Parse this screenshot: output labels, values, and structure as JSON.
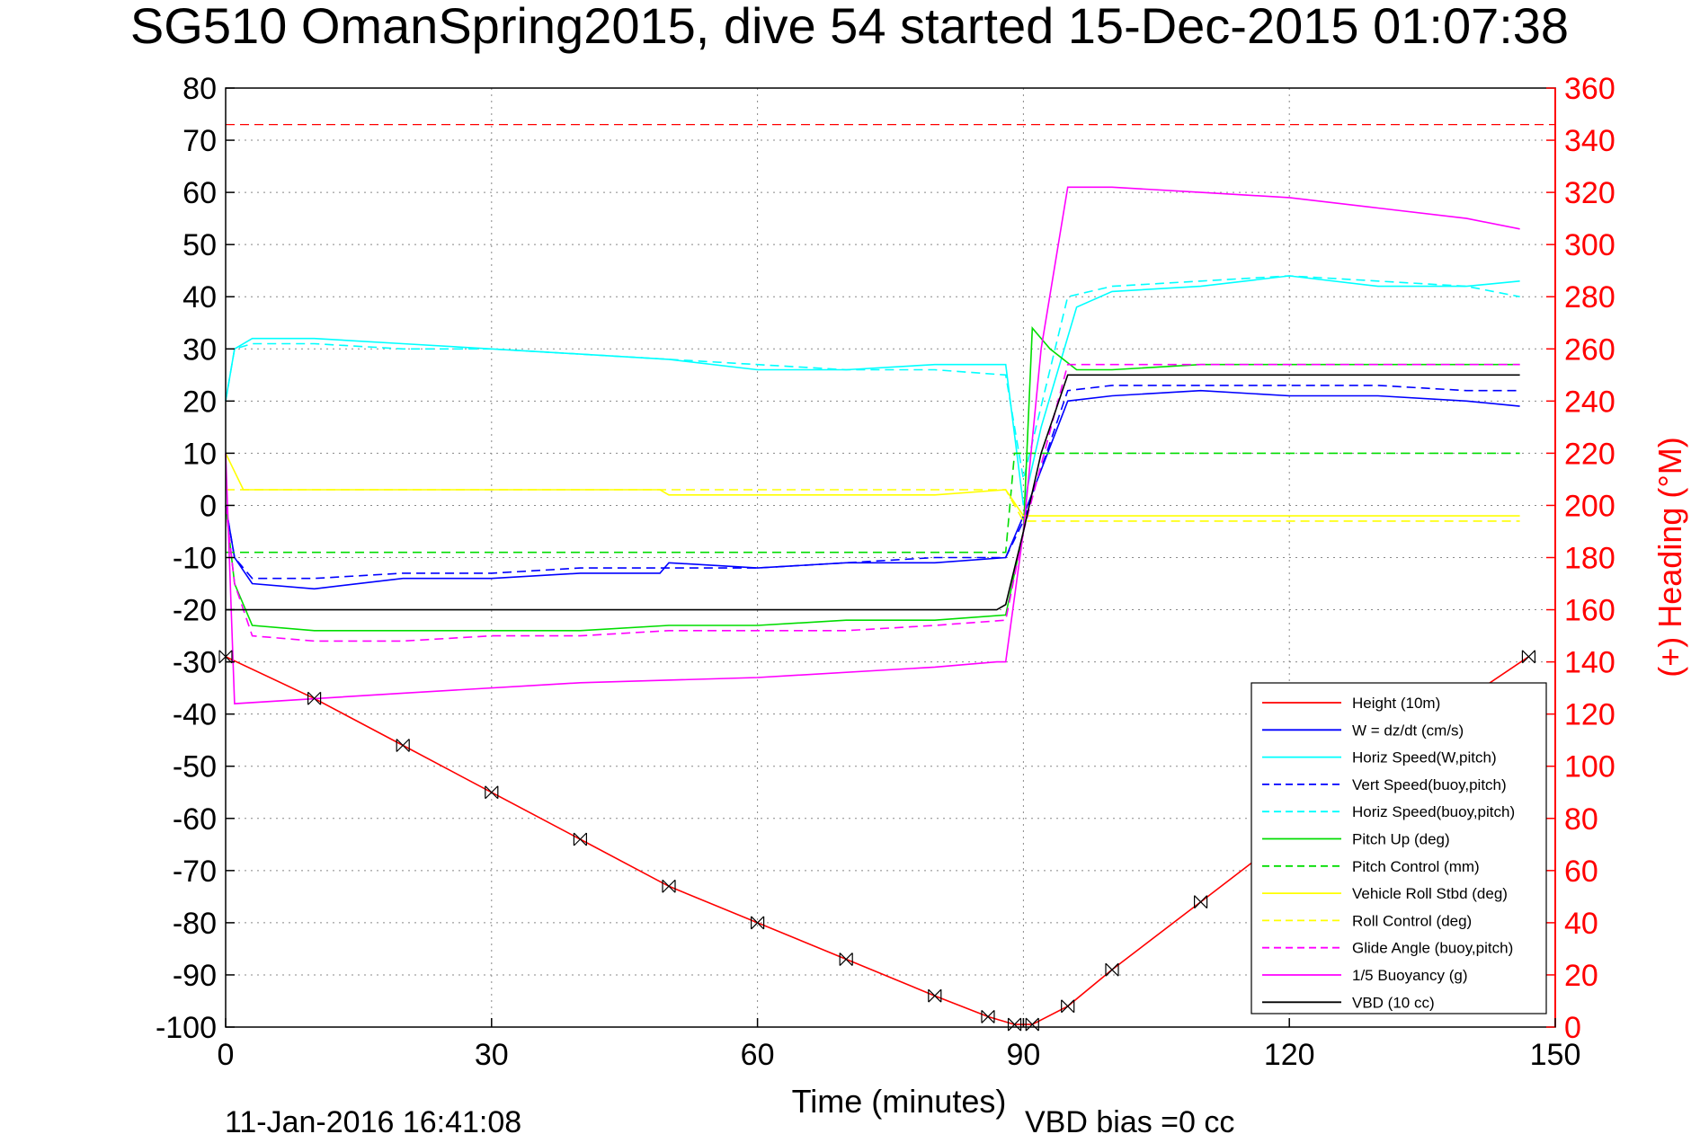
{
  "chart_data": {
    "type": "line",
    "title": "SG510 OmanSpring2015, dive 54 started 15-Dec-2015 01:07:38",
    "xlabel": "Time (minutes)",
    "ylabel_right": "(+) Heading (°M)",
    "xlim": [
      0,
      150
    ],
    "ylim": [
      -100,
      80
    ],
    "ylim_right": [
      0,
      360
    ],
    "xticks": [
      "0",
      "30",
      "60",
      "90",
      "120",
      "150"
    ],
    "yticks": [
      "80",
      "70",
      "60",
      "50",
      "40",
      "30",
      "20",
      "10",
      "0",
      "-10",
      "-20",
      "-30",
      "-40",
      "-50",
      "-60",
      "-70",
      "-80",
      "-90",
      "-100"
    ],
    "yticks_right": [
      "360",
      "340",
      "320",
      "300",
      "280",
      "260",
      "240",
      "220",
      "200",
      "180",
      "160",
      "140",
      "120",
      "100",
      "80",
      "60",
      "40",
      "20",
      "0"
    ],
    "grid": true,
    "legend_position": "bottom-right",
    "footer_date": "11-Jan-2016 16:41:08",
    "footer_note": "VBD bias =0 cc",
    "heading_ref_line": 73,
    "series": [
      {
        "name": "Height (10m)",
        "color": "#ff0000",
        "style": "solid",
        "x": [
          0,
          10,
          20,
          30,
          40,
          50,
          60,
          70,
          80,
          86,
          89,
          91,
          95,
          100,
          110,
          120,
          130,
          140,
          147
        ],
        "y": [
          -29,
          -37,
          -46,
          -55,
          -64,
          -73,
          -80,
          -87,
          -94,
          -98,
          -99.5,
          -99.5,
          -96,
          -89,
          -76,
          -63,
          -50,
          -37,
          -29
        ]
      },
      {
        "name": "W = dz/dt (cm/s)",
        "color": "#0000ff",
        "style": "solid",
        "x": [
          0,
          1,
          3,
          10,
          20,
          30,
          40,
          49,
          50,
          60,
          70,
          80,
          88,
          90,
          95,
          100,
          110,
          120,
          130,
          140,
          146
        ],
        "y": [
          0,
          -10,
          -15,
          -16,
          -14,
          -14,
          -13,
          -13,
          -11,
          -12,
          -11,
          -11,
          -10,
          -2,
          20,
          21,
          22,
          21,
          21,
          20,
          19
        ]
      },
      {
        "name": "Horiz Speed(W,pitch)",
        "color": "#00ffff",
        "style": "solid",
        "x": [
          0,
          1,
          3,
          10,
          20,
          30,
          40,
          50,
          60,
          70,
          80,
          88,
          90,
          92,
          96,
          100,
          110,
          120,
          130,
          140,
          146
        ],
        "y": [
          20,
          30,
          32,
          32,
          31,
          30,
          29,
          28,
          26,
          26,
          27,
          27,
          0,
          15,
          38,
          41,
          42,
          44,
          42,
          42,
          43
        ]
      },
      {
        "name": "Vert Speed(buoy,pitch)",
        "color": "#0000ff",
        "style": "dashed",
        "x": [
          0,
          1,
          3,
          10,
          20,
          30,
          40,
          50,
          60,
          70,
          80,
          88,
          90,
          95,
          100,
          110,
          120,
          130,
          140,
          146
        ],
        "y": [
          0,
          -10,
          -14,
          -14,
          -13,
          -13,
          -12,
          -12,
          -12,
          -11,
          -10,
          -10,
          -3,
          22,
          23,
          23,
          23,
          23,
          22,
          22
        ]
      },
      {
        "name": "Horiz Speed(buoy,pitch)",
        "color": "#00ffff",
        "style": "dashed",
        "x": [
          0,
          1,
          3,
          10,
          20,
          30,
          40,
          50,
          60,
          70,
          80,
          88,
          90,
          95,
          100,
          110,
          120,
          130,
          140,
          146
        ],
        "y": [
          20,
          30,
          31,
          31,
          30,
          30,
          29,
          28,
          27,
          26,
          26,
          25,
          5,
          40,
          42,
          43,
          44,
          43,
          42,
          40
        ]
      },
      {
        "name": "Pitch Up (deg)",
        "color": "#00dd00",
        "style": "solid",
        "x": [
          0,
          1,
          3,
          10,
          20,
          30,
          40,
          50,
          60,
          70,
          80,
          88,
          90,
          91,
          93,
          96,
          100,
          110,
          120,
          130,
          140,
          146
        ],
        "y": [
          0,
          -15,
          -23,
          -24,
          -24,
          -24,
          -24,
          -23,
          -23,
          -22,
          -22,
          -21,
          -5,
          34,
          30,
          26,
          26,
          27,
          27,
          27,
          27,
          27
        ]
      },
      {
        "name": "Pitch Control (mm)",
        "color": "#00dd00",
        "style": "dashed",
        "x": [
          0,
          2,
          88,
          89,
          146
        ],
        "y": [
          -9,
          -9,
          -9,
          10,
          10
        ]
      },
      {
        "name": "Vehicle Roll Stbd (deg)",
        "color": "#ffff00",
        "style": "solid",
        "x": [
          0,
          2,
          10,
          20,
          30,
          40,
          49,
          50,
          60,
          70,
          80,
          88,
          90,
          95,
          100,
          110,
          120,
          130,
          140,
          146
        ],
        "y": [
          10,
          3,
          3,
          3,
          3,
          3,
          3,
          2,
          2,
          2,
          2,
          3,
          -2,
          -2,
          -2,
          -2,
          -2,
          -2,
          -2,
          -2
        ]
      },
      {
        "name": "Roll Control (deg)",
        "color": "#ffff00",
        "style": "dashed",
        "x": [
          0,
          2,
          88,
          90,
          146
        ],
        "y": [
          3,
          3,
          3,
          -3,
          -3
        ]
      },
      {
        "name": "Glide Angle (buoy,pitch)",
        "color": "#ff00ff",
        "style": "dashed",
        "x": [
          0,
          1,
          3,
          10,
          20,
          30,
          40,
          50,
          60,
          70,
          80,
          88,
          90,
          95,
          100,
          110,
          120,
          130,
          140,
          146
        ],
        "y": [
          0,
          -15,
          -25,
          -26,
          -26,
          -25,
          -25,
          -24,
          -24,
          -24,
          -23,
          -22,
          -5,
          27,
          27,
          27,
          27,
          27,
          27,
          27
        ]
      },
      {
        "name": "1/5 Buoyancy (g)",
        "color": "#ff00ff",
        "style": "solid",
        "x": [
          0,
          1,
          20,
          40,
          60,
          80,
          87,
          88,
          90,
          92,
          95,
          100,
          110,
          120,
          130,
          140,
          146
        ],
        "y": [
          10,
          -38,
          -36,
          -34,
          -33,
          -31,
          -30,
          -30,
          -5,
          30,
          61,
          61,
          60,
          59,
          57,
          55,
          53
        ]
      },
      {
        "name": "VBD (10 cc)",
        "color": "#000000",
        "style": "solid",
        "x": [
          0,
          1,
          87,
          88,
          90,
          92,
          95,
          100,
          146
        ],
        "y": [
          -20,
          -20,
          -20,
          -19,
          -5,
          10,
          25,
          25,
          25
        ]
      }
    ]
  }
}
